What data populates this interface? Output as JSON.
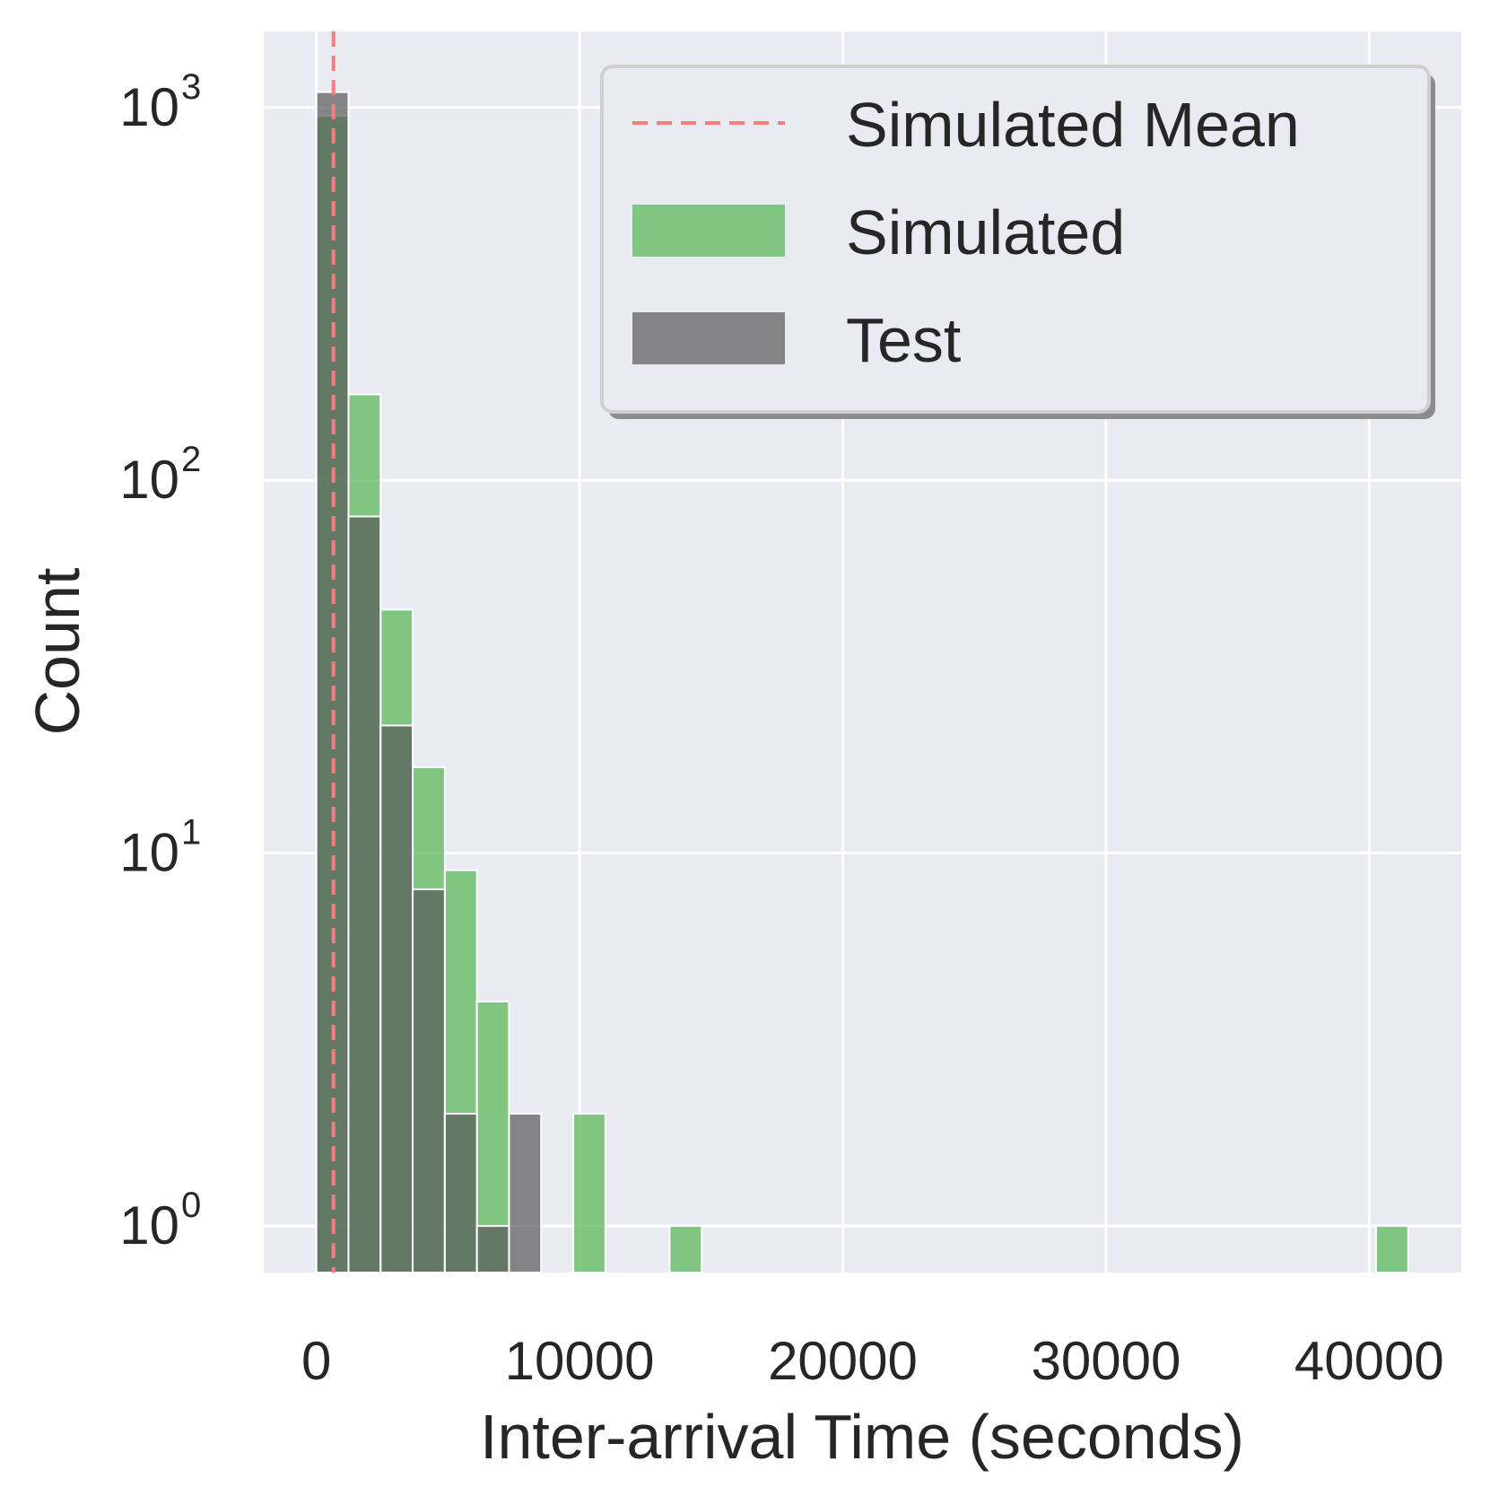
{
  "chart_data": {
    "type": "bar",
    "xlabel": "Inter-arrival Time (seconds)",
    "ylabel": "Count",
    "xlim": [
      -2000,
      43500
    ],
    "ylim": [
      0.75,
      1600
    ],
    "yscale": "log",
    "grid": true,
    "legend_position": "top-right",
    "x_ticks": [
      0,
      10000,
      20000,
      30000,
      40000
    ],
    "x_tick_labels": [
      "0",
      "10000",
      "20000",
      "30000",
      "40000"
    ],
    "y_ticks": [
      1,
      10,
      100,
      1000
    ],
    "y_tick_labels": [
      {
        "base": "10",
        "exp": "0"
      },
      {
        "base": "10",
        "exp": "1"
      },
      {
        "base": "10",
        "exp": "2"
      },
      {
        "base": "10",
        "exp": "3"
      }
    ],
    "mean_line": {
      "name": "Simulated Mean",
      "x": 650,
      "color": "#f08080"
    },
    "series": [
      {
        "name": "Simulated",
        "color": "#5cb85c",
        "opacity": 0.75,
        "bins": [
          {
            "x0": 0,
            "x1": 1220,
            "count": 950
          },
          {
            "x0": 1220,
            "x1": 2440,
            "count": 170
          },
          {
            "x0": 2440,
            "x1": 3660,
            "count": 45
          },
          {
            "x0": 3660,
            "x1": 4880,
            "count": 17
          },
          {
            "x0": 4880,
            "x1": 6100,
            "count": 9
          },
          {
            "x0": 6100,
            "x1": 7320,
            "count": 4
          },
          {
            "x0": 9760,
            "x1": 10980,
            "count": 2
          },
          {
            "x0": 13420,
            "x1": 14640,
            "count": 1
          },
          {
            "x0": 40260,
            "x1": 41480,
            "count": 1
          }
        ]
      },
      {
        "name": "Test",
        "color": "#595959",
        "opacity": 0.7,
        "bins": [
          {
            "x0": 0,
            "x1": 1220,
            "count": 1100
          },
          {
            "x0": 1220,
            "x1": 2440,
            "count": 80
          },
          {
            "x0": 2440,
            "x1": 3660,
            "count": 22
          },
          {
            "x0": 3660,
            "x1": 4880,
            "count": 8
          },
          {
            "x0": 4880,
            "x1": 6100,
            "count": 2
          },
          {
            "x0": 6100,
            "x1": 7320,
            "count": 1
          },
          {
            "x0": 7320,
            "x1": 8540,
            "count": 2
          }
        ]
      }
    ]
  }
}
